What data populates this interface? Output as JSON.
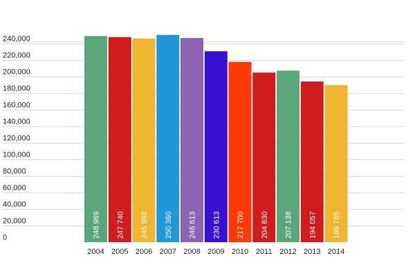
{
  "chart_data": {
    "type": "bar",
    "title": "",
    "xlabel": "",
    "ylabel": "",
    "ylim": [
      0,
      260000
    ],
    "yticks": [
      {
        "value": 0,
        "label": "0"
      },
      {
        "value": 20000,
        "label": "20,000"
      },
      {
        "value": 40000,
        "label": "40,000"
      },
      {
        "value": 60000,
        "label": "60,000"
      },
      {
        "value": 80000,
        "label": "80,000"
      },
      {
        "value": 100000,
        "label": "100,000"
      },
      {
        "value": 120000,
        "label": "120,000"
      },
      {
        "value": 140000,
        "label": "140,000"
      },
      {
        "value": 160000,
        "label": "160,000"
      },
      {
        "value": 180000,
        "label": "180,000"
      },
      {
        "value": 200000,
        "label": "200,000"
      },
      {
        "value": 220000,
        "label": "220,000"
      },
      {
        "value": 240000,
        "label": "240,000"
      }
    ],
    "grid": true,
    "categories": [
      "2004",
      "2005",
      "2006",
      "2007",
      "2008",
      "2009",
      "2010",
      "2011",
      "2012",
      "2013",
      "2014"
    ],
    "values": [
      248969,
      247740,
      245992,
      250360,
      246613,
      230613,
      217700,
      204830,
      207138,
      194057,
      189765
    ],
    "data_labels": [
      "248 969",
      "247 740",
      "245 992",
      "250 360",
      "246 613",
      "230 613",
      "217 700",
      "204 830",
      "207 138",
      "194 057",
      "189 765"
    ],
    "colors": [
      "#5aa77b",
      "#d01c1f",
      "#f0b631",
      "#2196d8",
      "#8e63b2",
      "#3a11d4",
      "#fe3a07",
      "#d01c1f",
      "#5aa77b",
      "#d01c1f",
      "#f0b631"
    ]
  }
}
